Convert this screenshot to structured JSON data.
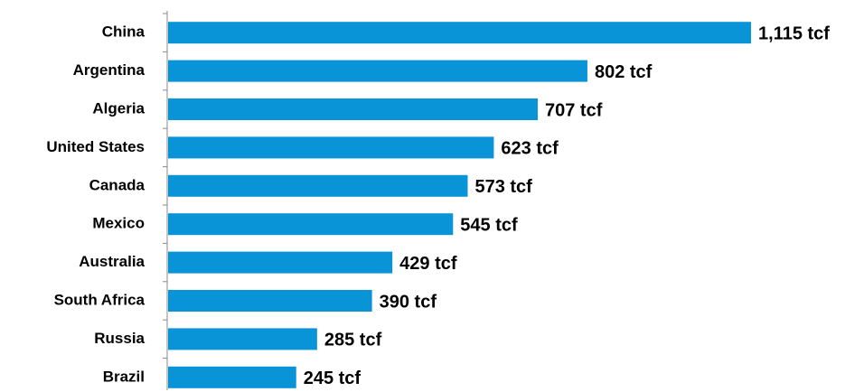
{
  "chart_data": {
    "type": "bar",
    "orientation": "horizontal",
    "categories": [
      "China",
      "Argentina",
      "Algeria",
      "United States",
      "Canada",
      "Mexico",
      "Australia",
      "South Africa",
      "Russia",
      "Brazil"
    ],
    "values": [
      1115,
      802,
      707,
      623,
      573,
      545,
      429,
      390,
      285,
      245
    ],
    "value_labels": [
      "1,115 tcf",
      "802 tcf",
      "707 tcf",
      "623 tcf",
      "573 tcf",
      "545 tcf",
      "429 tcf",
      "390 tcf",
      "285 tcf",
      "245 tcf"
    ],
    "color": "#0a94d8"
  }
}
